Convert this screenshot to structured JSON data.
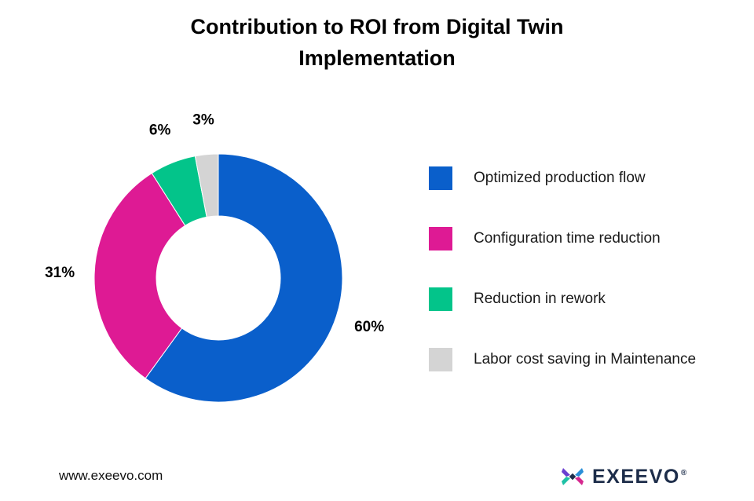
{
  "chart_data": {
    "type": "pie",
    "donut": true,
    "title": "Contribution to ROI from Digital Twin Implementation",
    "categories": [
      "Optimized production flow",
      "Configuration time reduction",
      "Reduction in rework",
      "Labor cost saving in Maintenance"
    ],
    "values": [
      60,
      31,
      6,
      3
    ],
    "value_labels": [
      "60%",
      "31%",
      "6%",
      "3%"
    ],
    "colors": [
      "#0a5fcb",
      "#de1a94",
      "#03c48a",
      "#d4d4d4"
    ],
    "legend_position": "right"
  },
  "footer": {
    "url": "www.exeevo.com",
    "brand": "EXEEVO",
    "brand_mark": "®"
  }
}
